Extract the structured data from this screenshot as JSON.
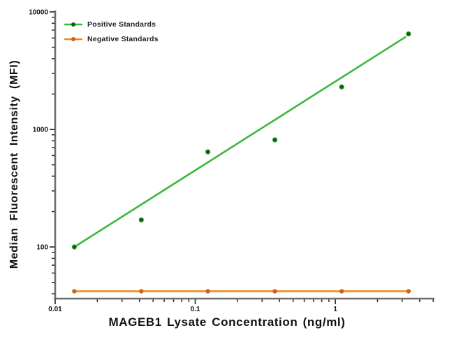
{
  "chart_data": {
    "type": "scatter",
    "title": "",
    "xlabel": "MAGEB1 Lysate Concentration (ng/ml)",
    "ylabel": "Median Fluorescent Intensity (MFI)",
    "log_x": true,
    "log_y": true,
    "grid": false,
    "legend_position": "top-left-inside",
    "x": [
      0.0137,
      0.0412,
      0.123,
      0.37,
      1.11,
      3.33
    ],
    "series": [
      {
        "name": "Positive Standards",
        "values": [
          100,
          170,
          645,
          815,
          2300,
          6500
        ],
        "line_color": "#3cb53c",
        "point_color": "#145a14",
        "trend_line": {
          "x1": 0.0137,
          "y1": 100,
          "x2": 3.16,
          "y2": 6100
        }
      },
      {
        "name": "Negative Standards",
        "values": [
          42,
          42,
          42,
          42,
          42,
          42
        ],
        "line_color": "#f6891f",
        "point_color": "#c8651a"
      }
    ],
    "x_axis": {
      "range": [
        0.01,
        5.1
      ],
      "major_ticks": [
        {
          "value": 0.01,
          "label": "0.01"
        },
        {
          "value": 0.1,
          "label": "0.1"
        },
        {
          "value": 1,
          "label": "1"
        }
      ]
    },
    "y_axis": {
      "range": [
        36.35,
        10000
      ],
      "major_ticks": [
        {
          "value": 100,
          "label": "100"
        },
        {
          "value": 1000,
          "label": "1000"
        },
        {
          "value": 10000,
          "label": "10000"
        }
      ]
    },
    "axis_line_color": "#6e6e6e",
    "tick_color": "#2b2b2b",
    "tick_label_color": "#111111"
  }
}
